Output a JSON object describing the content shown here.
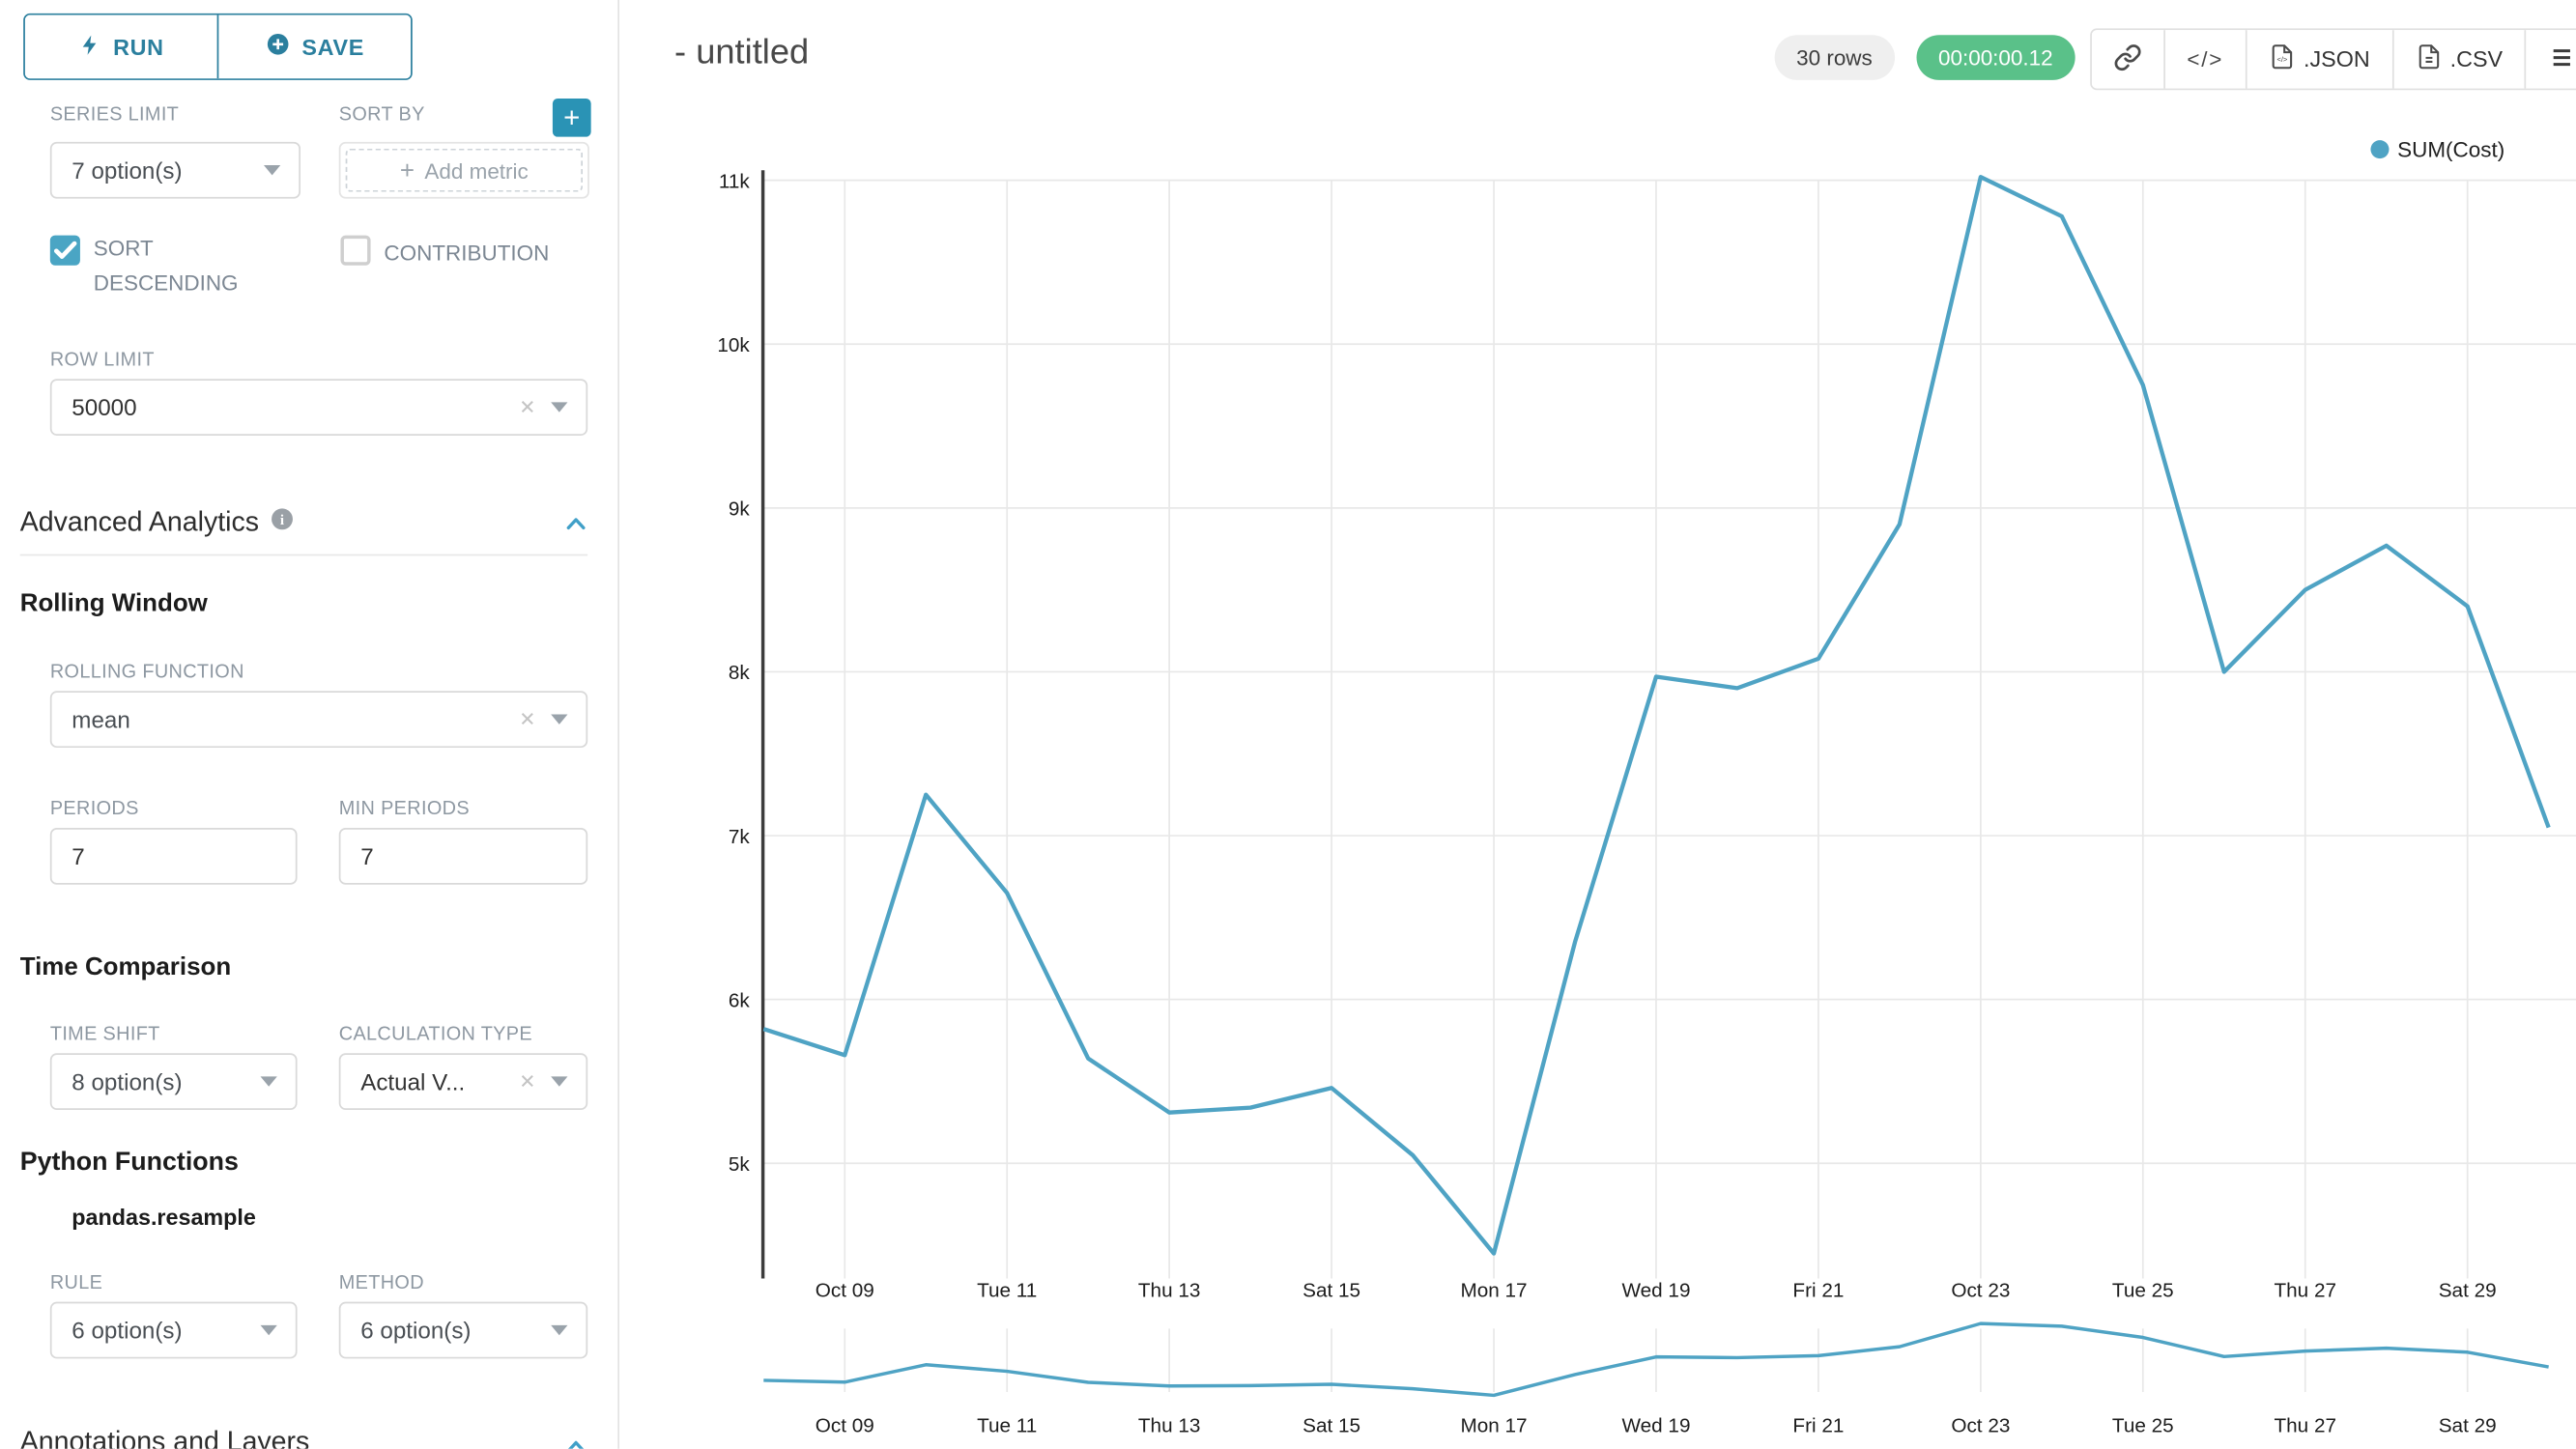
{
  "colors": {
    "accent": "#2b7f9e",
    "accent-light": "#4aa5c4",
    "plus": "#2a93b5",
    "success": "#5ac189",
    "pill-bg": "#efefef",
    "label-gray": "#8e98a2",
    "border": "#d9d9d9",
    "grid": "#e8e8e8",
    "axis": "#3c3c3c",
    "chart-line": "#4fa3c4"
  },
  "panel": {
    "run_label": "RUN",
    "save_label": "SAVE",
    "series_limit": {
      "label": "SERIES LIMIT",
      "value": "7 option(s)"
    },
    "sort_by": {
      "label": "SORT BY",
      "placeholder": "Add metric",
      "plus_glyph": "+"
    },
    "sort_descending": {
      "label": "SORT DESCENDING",
      "checked": true
    },
    "contribution": {
      "label": "CONTRIBUTION",
      "checked": false
    },
    "row_limit": {
      "label": "ROW LIMIT",
      "value": "50000"
    },
    "advanced_analytics": {
      "title": "Advanced Analytics"
    },
    "rolling_window": {
      "title": "Rolling Window",
      "rolling_function": {
        "label": "ROLLING FUNCTION",
        "value": "mean"
      },
      "periods": {
        "label": "PERIODS",
        "value": "7"
      },
      "min_periods": {
        "label": "MIN PERIODS",
        "value": "7"
      }
    },
    "time_comparison": {
      "title": "Time Comparison",
      "time_shift": {
        "label": "TIME SHIFT",
        "value": "8 option(s)"
      },
      "calculation_type": {
        "label": "CALCULATION TYPE",
        "value": "Actual V..."
      }
    },
    "python_functions": {
      "title": "Python Functions",
      "subtitle": "pandas.resample",
      "rule": {
        "label": "RULE",
        "value": "6 option(s)"
      },
      "method": {
        "label": "METHOD",
        "value": "6 option(s)"
      }
    },
    "annotations": {
      "title": "Annotations and Layers"
    }
  },
  "header": {
    "title": "- untitled",
    "rows_badge": "30 rows",
    "timer_badge": "00:00:00.12",
    "export_json_label": ".JSON",
    "export_csv_label": ".CSV"
  },
  "icons": {
    "run": "lightning-bolt",
    "save": "plus-circle",
    "info": "info-circle",
    "collapse": "chevron-up",
    "share": "link",
    "embed": "code",
    "json": "file-code",
    "csv": "file-text",
    "menu": "hamburger"
  },
  "chart_data": {
    "type": "line",
    "legend": {
      "position": "top-right",
      "entries": [
        {
          "label": "SUM(Cost)",
          "color": "#4fa3c4"
        }
      ]
    },
    "x": [
      "Oct 08",
      "Oct 09",
      "Oct 10",
      "Oct 11",
      "Oct 12",
      "Oct 13",
      "Oct 14",
      "Oct 15",
      "Oct 16",
      "Oct 17",
      "Oct 18",
      "Oct 19",
      "Oct 20",
      "Oct 21",
      "Oct 22",
      "Oct 23",
      "Oct 24",
      "Oct 25",
      "Oct 26",
      "Oct 27",
      "Oct 28",
      "Oct 29",
      "Oct 30"
    ],
    "x_start_day": 8,
    "series": [
      {
        "name": "SUM(Cost)",
        "color": "#4fa3c4",
        "values": [
          5820,
          5660,
          7250,
          6650,
          5640,
          5310,
          5340,
          5460,
          5050,
          4450,
          6350,
          7970,
          7900,
          8080,
          8900,
          11020,
          10780,
          9750,
          8000,
          8500,
          8770,
          8400,
          7050
        ]
      }
    ],
    "xlabel": "",
    "ylabel": "",
    "x_tick_days": [
      9,
      11,
      13,
      15,
      17,
      19,
      21,
      23,
      25,
      27,
      29
    ],
    "x_tick_labels": [
      "Oct 09",
      "Tue 11",
      "Thu 13",
      "Sat 15",
      "Mon 17",
      "Wed 19",
      "Fri 21",
      "Oct 23",
      "Tue 25",
      "Thu 27",
      "Sat 29"
    ],
    "y_ticks": [
      5000,
      6000,
      7000,
      8000,
      9000,
      10000,
      11000
    ],
    "y_tick_labels": [
      "5k",
      "6k",
      "7k",
      "8k",
      "9k",
      "10k",
      "11k"
    ],
    "ylim": [
      4380,
      11060
    ],
    "grid": true,
    "context_strip": true
  }
}
